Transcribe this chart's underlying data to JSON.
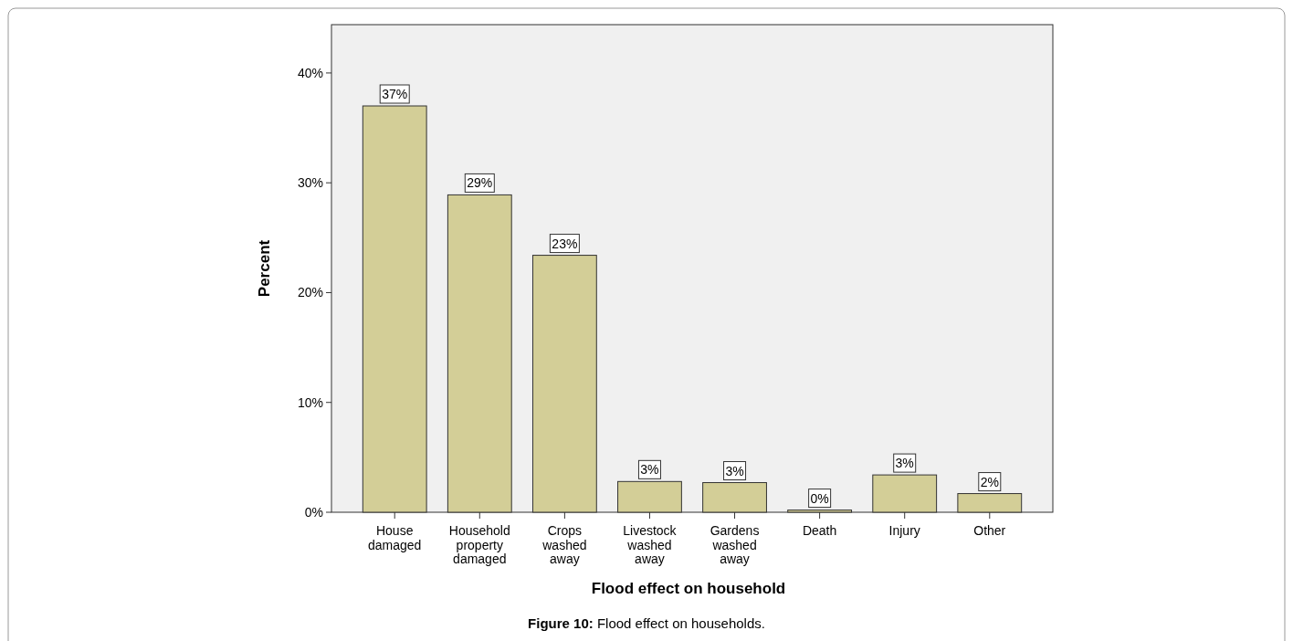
{
  "chart_data": {
    "type": "bar",
    "xlabel": "Flood effect on household",
    "ylabel": "Percent",
    "categories": [
      "House damaged",
      "Household property damaged",
      "Crops washed away",
      "Livestock washed away",
      "Gardens washed away",
      "Death",
      "Injury",
      "Other"
    ],
    "values": [
      37.0,
      28.9,
      23.4,
      2.8,
      2.7,
      0.2,
      3.4,
      1.7
    ],
    "value_labels": [
      "37%",
      "29%",
      "23%",
      "3%",
      "3%",
      "0%",
      "3%",
      "2%"
    ],
    "color": "#d3ce97",
    "ylim": [
      0,
      44.4
    ],
    "yticks": [
      {
        "value": 0,
        "label": "0%"
      },
      {
        "value": 10,
        "label": "10%"
      },
      {
        "value": 20,
        "label": "20%"
      },
      {
        "value": 30,
        "label": "30%"
      },
      {
        "value": 40,
        "label": "40%"
      }
    ],
    "grid": false,
    "annotations": [
      "Figure 10: Flood effect on households."
    ]
  }
}
